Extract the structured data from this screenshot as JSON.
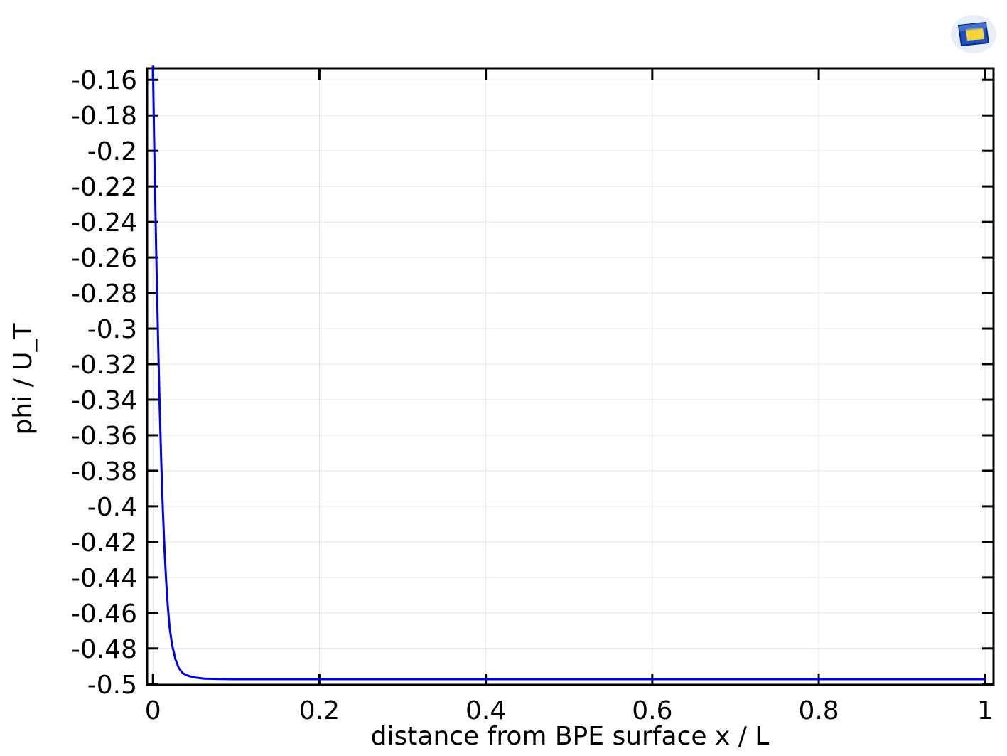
{
  "chart_data": {
    "type": "line",
    "title": "",
    "xlabel": "distance from BPE surface x / L",
    "ylabel": "phi / U_T",
    "xlim": [
      -0.007,
      1.01
    ],
    "ylim": [
      -0.5005,
      -0.1535
    ],
    "grid": true,
    "xticks": [
      0,
      0.2,
      0.4,
      0.6,
      0.8,
      1
    ],
    "xtick_labels": [
      "0",
      "0.2",
      "0.4",
      "0.6",
      "0.8",
      "1"
    ],
    "yticks": [
      -0.16,
      -0.18,
      -0.2,
      -0.22,
      -0.24,
      -0.26,
      -0.28,
      -0.3,
      -0.32,
      -0.34,
      -0.36,
      -0.38,
      -0.4,
      -0.42,
      -0.44,
      -0.46,
      -0.48,
      -0.5
    ],
    "ytick_labels": [
      "-0.16",
      "-0.18",
      "-0.2",
      "-0.22",
      "-0.24",
      "-0.26",
      "-0.28",
      "-0.3",
      "-0.32",
      "-0.34",
      "-0.36",
      "-0.38",
      "-0.4",
      "-0.42",
      "-0.44",
      "-0.46",
      "-0.48",
      "-0.5"
    ],
    "series": [
      {
        "name": "phi / U_T",
        "color": "#0000ee",
        "x": [
          0,
          0.002,
          0.004,
          0.006,
          0.008,
          0.01,
          0.012,
          0.014,
          0.016,
          0.018,
          0.02,
          0.023,
          0.027,
          0.031,
          0.036,
          0.043,
          0.051,
          0.062,
          0.08,
          0.1,
          0.15,
          0.2,
          0.3,
          0.4,
          0.5,
          0.6,
          0.7,
          0.8,
          0.9,
          1.0
        ],
        "y": [
          -0.152,
          -0.208,
          -0.258,
          -0.302,
          -0.342,
          -0.375,
          -0.403,
          -0.425,
          -0.443,
          -0.457,
          -0.468,
          -0.478,
          -0.486,
          -0.491,
          -0.494,
          -0.4955,
          -0.4964,
          -0.497,
          -0.4972,
          -0.4973,
          -0.4973,
          -0.4973,
          -0.4973,
          -0.4973,
          -0.4973,
          -0.4973,
          -0.4973,
          -0.4973,
          -0.4973,
          -0.4973
        ]
      }
    ]
  },
  "logo": {
    "name": "comsol-logo",
    "colors": [
      "#1f4fbf",
      "#f5d63a",
      "#e8eef8"
    ]
  }
}
